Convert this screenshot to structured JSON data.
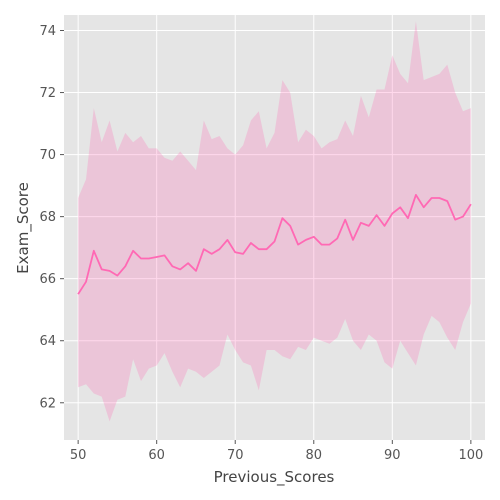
{
  "chart_data": {
    "type": "line",
    "title": "",
    "xlabel": "Previous_Scores",
    "ylabel": "Exam_Score",
    "xlim": [
      48.2,
      101.8
    ],
    "ylim": [
      60.8,
      74.5
    ],
    "xticks": [
      50,
      60,
      70,
      80,
      90,
      100
    ],
    "yticks": [
      62,
      64,
      66,
      68,
      70,
      72,
      74
    ],
    "grid": true,
    "legend": "none",
    "colors": {
      "line": "#ff69b4",
      "band": "#ff69b4",
      "background": "#e5e5e5",
      "grid": "#ffffff"
    },
    "series": [
      {
        "x": [
          50,
          51,
          52,
          53,
          54,
          55,
          56,
          57,
          58,
          59,
          60,
          61,
          62,
          63,
          64,
          65,
          66,
          67,
          68,
          69,
          70,
          71,
          72,
          73,
          74,
          75,
          76,
          77,
          78,
          79,
          80,
          81,
          82,
          83,
          84,
          85,
          86,
          87,
          88,
          89,
          90,
          91,
          92,
          93,
          94,
          95,
          96,
          97,
          98,
          99,
          100
        ],
        "y": [
          65.5,
          65.9,
          66.9,
          66.3,
          66.25,
          66.1,
          66.4,
          66.9,
          66.65,
          66.65,
          66.7,
          66.75,
          66.4,
          66.3,
          66.5,
          66.25,
          66.95,
          66.8,
          66.95,
          67.25,
          66.85,
          66.8,
          67.15,
          66.95,
          66.95,
          67.2,
          67.95,
          67.7,
          67.1,
          67.25,
          67.35,
          67.1,
          67.1,
          67.3,
          67.9,
          67.25,
          67.8,
          67.7,
          68.05,
          67.7,
          68.1,
          68.3,
          67.95,
          68.7,
          68.3,
          68.6,
          68.6,
          68.5,
          67.9,
          68.0,
          68.4
        ],
        "lower": [
          62.5,
          62.6,
          62.3,
          62.2,
          61.4,
          62.1,
          62.2,
          63.4,
          62.7,
          63.1,
          63.2,
          63.6,
          63.0,
          62.5,
          63.1,
          63.0,
          62.8,
          63.0,
          63.2,
          64.2,
          63.7,
          63.3,
          63.2,
          62.4,
          63.7,
          63.7,
          63.5,
          63.4,
          63.8,
          63.7,
          64.1,
          64.0,
          63.9,
          64.1,
          64.7,
          64.0,
          63.7,
          64.2,
          64.0,
          63.3,
          63.1,
          64.0,
          63.6,
          63.2,
          64.2,
          64.8,
          64.6,
          64.1,
          63.7,
          64.6,
          65.2
        ],
        "upper": [
          68.6,
          69.2,
          71.5,
          70.4,
          71.1,
          70.1,
          70.7,
          70.4,
          70.6,
          70.2,
          70.2,
          69.9,
          69.8,
          70.1,
          69.8,
          69.5,
          71.1,
          70.5,
          70.6,
          70.2,
          70.0,
          70.3,
          71.1,
          71.4,
          70.2,
          70.7,
          72.4,
          72.0,
          70.4,
          70.8,
          70.6,
          70.2,
          70.4,
          70.5,
          71.1,
          70.6,
          71.9,
          71.2,
          72.1,
          72.1,
          73.2,
          72.6,
          72.3,
          74.3,
          72.4,
          72.5,
          72.6,
          72.9,
          72.0,
          71.4,
          71.5
        ]
      }
    ]
  }
}
